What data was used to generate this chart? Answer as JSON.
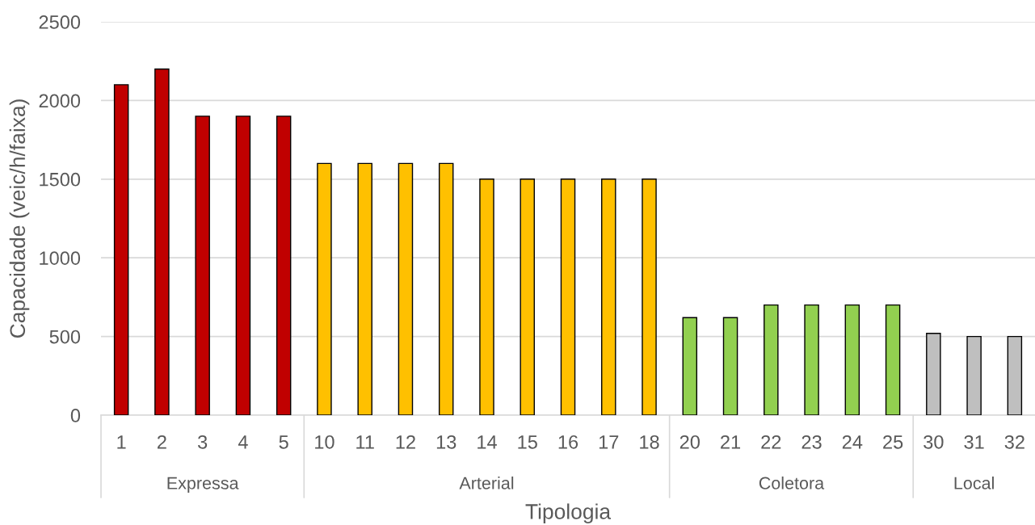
{
  "chart_data": {
    "type": "bar",
    "xlabel": "Tipologia",
    "ylabel": "Capacidade (veic/h/faixa)",
    "categories": [
      "1",
      "2",
      "3",
      "4",
      "5",
      "10",
      "11",
      "12",
      "13",
      "14",
      "15",
      "16",
      "17",
      "18",
      "20",
      "21",
      "22",
      "23",
      "24",
      "25",
      "30",
      "31",
      "32"
    ],
    "series": [
      {
        "color": "#c00000",
        "values": [
          2100,
          2200,
          1900,
          1900,
          1900,
          null,
          null,
          null,
          null,
          null,
          null,
          null,
          null,
          null,
          null,
          null,
          null,
          null,
          null,
          null,
          null,
          null,
          null
        ]
      },
      {
        "color": "#ffc000",
        "values": [
          null,
          null,
          null,
          null,
          null,
          1600,
          1600,
          1600,
          1600,
          1500,
          1500,
          1500,
          1500,
          1500,
          null,
          null,
          null,
          null,
          null,
          null,
          null,
          null,
          null
        ]
      },
      {
        "color": "#92d050",
        "values": [
          null,
          null,
          null,
          null,
          null,
          null,
          null,
          null,
          null,
          null,
          null,
          null,
          null,
          null,
          620,
          620,
          700,
          700,
          700,
          700,
          null,
          null,
          null
        ]
      },
      {
        "color": "#bfbfbf",
        "values": [
          null,
          null,
          null,
          null,
          null,
          null,
          null,
          null,
          null,
          null,
          null,
          null,
          null,
          null,
          null,
          null,
          null,
          null,
          null,
          null,
          520,
          500,
          500
        ]
      }
    ],
    "annotations": [
      "Expressa",
      "Arterial",
      "Coletora",
      "Local"
    ],
    "ylim": [
      0,
      2500
    ],
    "yticks": [
      0,
      500,
      1000,
      1500,
      2000,
      2500
    ],
    "grid": "y"
  }
}
